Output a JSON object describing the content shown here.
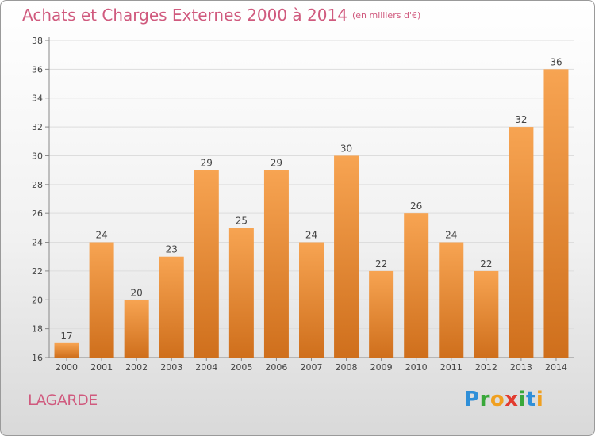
{
  "title": "Achats et Charges Externes 2000 à 2014",
  "unit": "(en milliers d'€)",
  "place": "LAGARDE",
  "logo": "Proxiti",
  "colors": {
    "bar_top": "#f7a452",
    "bar_bottom": "#cf6f1c",
    "title": "#d05a7e"
  },
  "chart_data": {
    "type": "bar",
    "categories": [
      "2000",
      "2001",
      "2002",
      "2003",
      "2004",
      "2005",
      "2006",
      "2007",
      "2008",
      "2009",
      "2010",
      "2011",
      "2012",
      "2013",
      "2014"
    ],
    "values": [
      17,
      24,
      20,
      23,
      29,
      25,
      29,
      24,
      30,
      22,
      26,
      24,
      22,
      32,
      36
    ],
    "ylim": [
      16,
      38
    ],
    "yticks": [
      16,
      18,
      20,
      22,
      24,
      26,
      28,
      30,
      32,
      34,
      36,
      38
    ],
    "grid": true,
    "xlabel": "",
    "ylabel": ""
  }
}
